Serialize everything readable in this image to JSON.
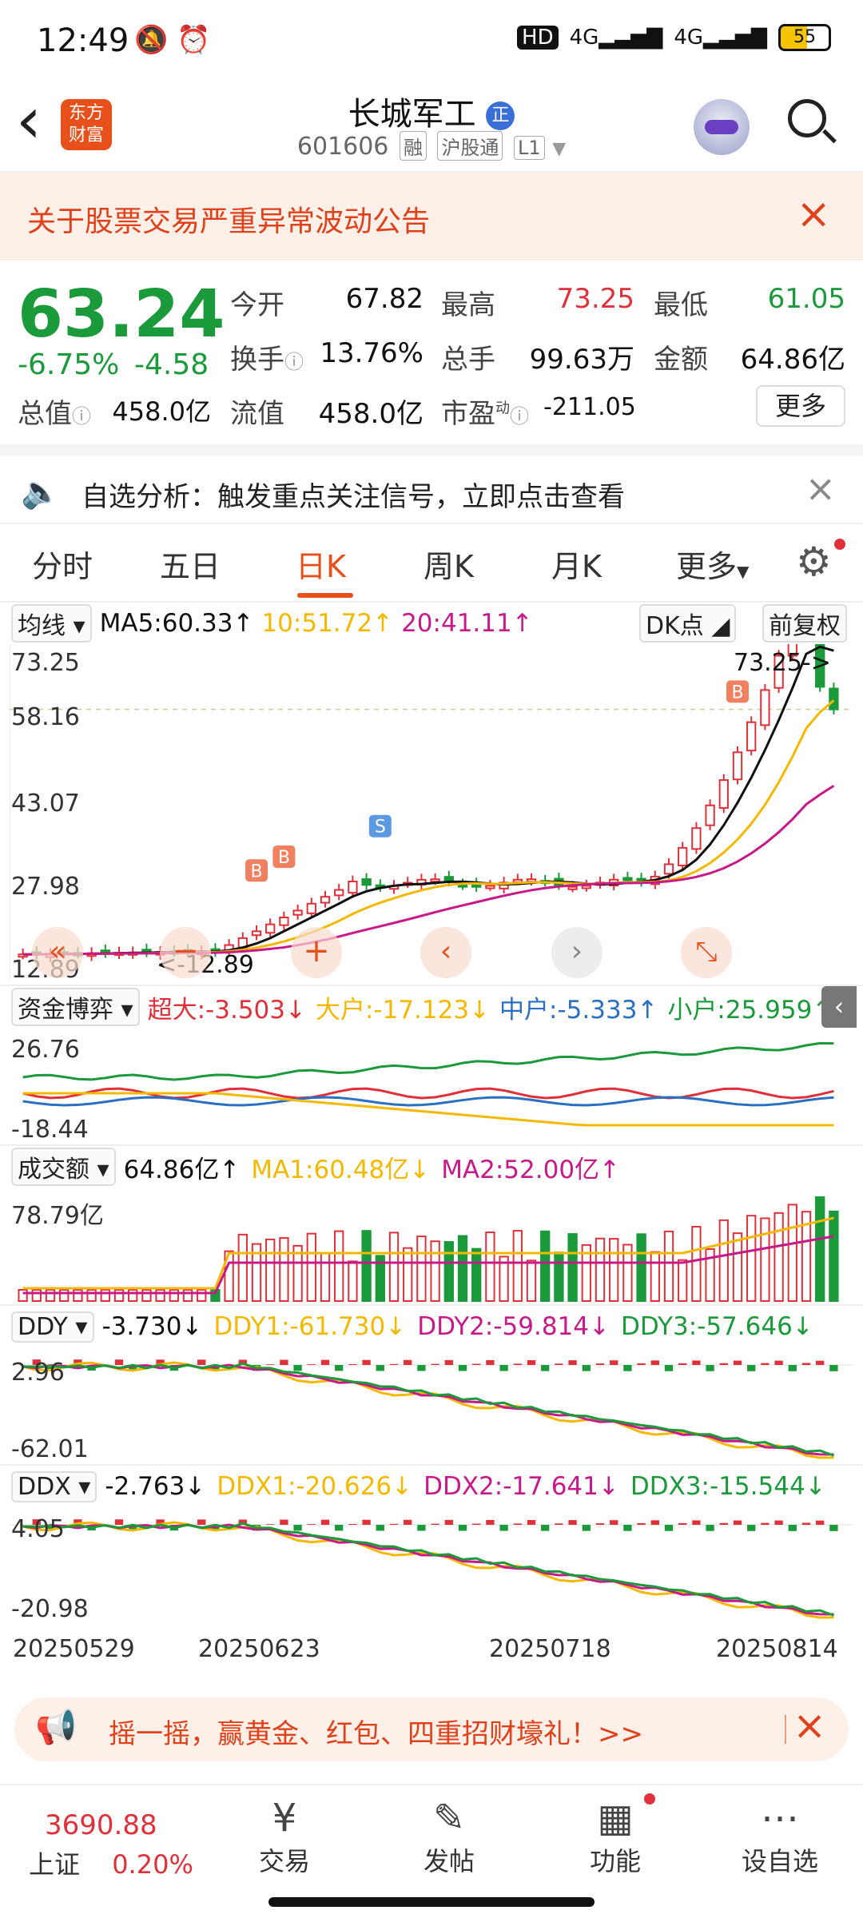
{
  "status": {
    "time": "12:49",
    "net": "4G",
    "battery": "55",
    "hd": "HD"
  },
  "header": {
    "back": "‹",
    "logo": "东方财富",
    "title": "长城军工",
    "badge": "正",
    "code": "601606",
    "tags": [
      "融",
      "沪股通",
      "L1"
    ]
  },
  "notice": {
    "text": "关于股票交易严重异常波动公告",
    "close": "×"
  },
  "quote": {
    "price": "63.24",
    "pct": "-6.75%",
    "change": "-4.58",
    "fields": [
      {
        "label": "今开",
        "value": "67.82",
        "color": "#111"
      },
      {
        "label": "最高",
        "value": "73.25",
        "color": "#e0303a"
      },
      {
        "label": "最低",
        "value": "61.05",
        "color": "#1a9a3a"
      },
      {
        "label": "换手",
        "value": "13.76%",
        "color": "#111"
      },
      {
        "label": "总手",
        "value": "99.63万",
        "color": "#111"
      },
      {
        "label": "金额",
        "value": "64.86亿",
        "color": "#111"
      },
      {
        "label": "总值",
        "value": "458.0亿",
        "color": "#111"
      },
      {
        "label": "流值",
        "value": "458.0亿",
        "color": "#111"
      },
      {
        "label": "市盈",
        "value": "-211.05",
        "color": "#111"
      }
    ],
    "pe_sup": "动",
    "more": "更多"
  },
  "analysis": {
    "text": "自选分析：触发重点关注信号，立即点击查看",
    "close": "×"
  },
  "tabs": [
    "分时",
    "五日",
    "日K",
    "周K",
    "月K",
    "更多"
  ],
  "ma_bar": {
    "selector": "均线",
    "ma5": "MA5:60.33↑",
    "ma10": "10:51.72↑",
    "ma20": "20:41.11↑",
    "dk": "DK点",
    "fq": "前复权"
  },
  "kline_axis": {
    "y": [
      "73.25",
      "58.16",
      "43.07",
      "27.98",
      "12.89"
    ],
    "high_label": "73.25->",
    "low_label": "<-12.89"
  },
  "fund": {
    "selector": "资金博弈",
    "super": "超大:-3.503↓",
    "big": "大户:-17.123↓",
    "mid": "中户:-5.333↑",
    "small": "小户:25.959↑",
    "ymax": "26.76",
    "ymin": "-18.44"
  },
  "volume": {
    "selector": "成交额",
    "value": "64.86亿↑",
    "ma1": "MA1:60.48亿↓",
    "ma2": "MA2:52.00亿↑",
    "ymax": "78.79亿"
  },
  "ddy": {
    "selector": "DDY",
    "value": "-3.730↓",
    "l1": "DDY1:-61.730↓",
    "l2": "DDY2:-59.814↓",
    "l3": "DDY3:-57.646↓",
    "ymax": "2.96",
    "ymin": "-62.01"
  },
  "ddx": {
    "selector": "DDX",
    "value": "-2.763↓",
    "l1": "DDX1:-20.626↓",
    "l2": "DDX2:-17.641↓",
    "l3": "DDX3:-15.544↓",
    "ymax": "4.05",
    "ymin": "-20.98"
  },
  "dates": [
    "20250529",
    "20250623",
    "20250718",
    "20250814"
  ],
  "promo": {
    "text": "摇一摇，赢黄金、红包、四重招财壕礼！>>",
    "close": "×"
  },
  "bottomnav": {
    "index_value": "3690.88",
    "index_name": "上证",
    "index_pct": "0.20%",
    "items": [
      "交易",
      "发帖",
      "功能",
      "设自选"
    ]
  },
  "colors": {
    "up": "#e0303a",
    "down": "#1a9a3a",
    "accent": "#e8501b",
    "ma5": "#111111",
    "ma10": "#f5b800",
    "ma20": "#c8198a"
  }
}
